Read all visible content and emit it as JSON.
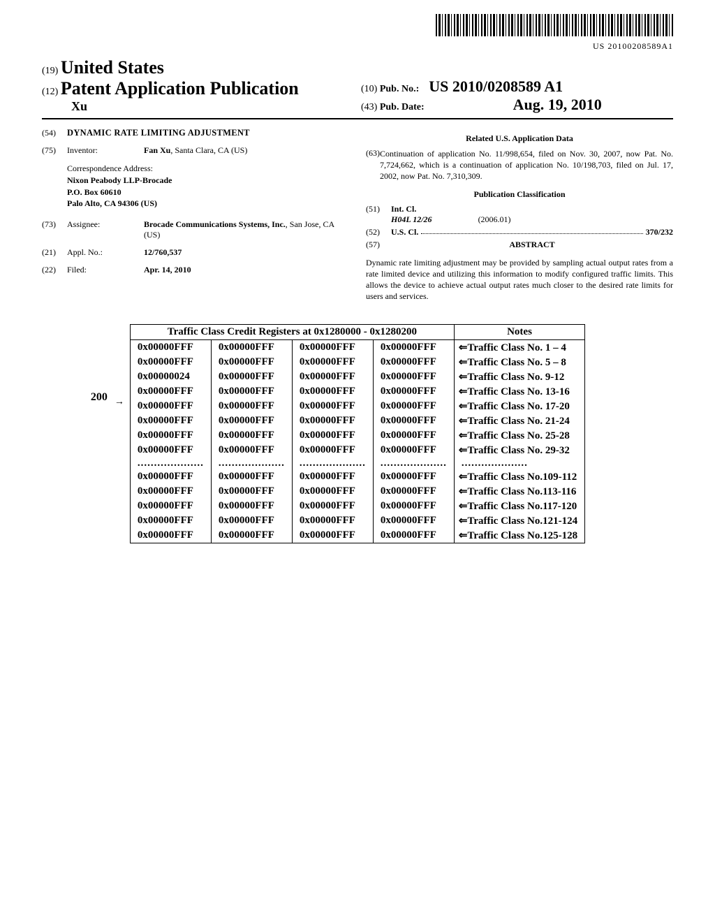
{
  "barcode_text": "US 20100208589A1",
  "header": {
    "code19": "(19)",
    "country": "United States",
    "code12": "(12)",
    "pub_title": "Patent Application Publication",
    "author": "Xu",
    "code10": "(10)",
    "pubno_label": "Pub. No.:",
    "pubno": "US 2010/0208589 A1",
    "code43": "(43)",
    "pubdate_label": "Pub. Date:",
    "pubdate": "Aug. 19, 2010"
  },
  "left": {
    "f54": {
      "code": "(54)",
      "title": "DYNAMIC RATE LIMITING ADJUSTMENT"
    },
    "f75": {
      "code": "(75)",
      "label": "Inventor:",
      "name": "Fan Xu",
      "loc": ", Santa Clara, CA (US)"
    },
    "addr_label": "Correspondence Address:",
    "addr1": "Nixon Peabody LLP-Brocade",
    "addr2": "P.O. Box 60610",
    "addr3": "Palo Alto, CA 94306 (US)",
    "f73": {
      "code": "(73)",
      "label": "Assignee:",
      "name": "Brocade Communications Systems, Inc.",
      "loc": ", San Jose, CA (US)"
    },
    "f21": {
      "code": "(21)",
      "label": "Appl. No.:",
      "value": "12/760,537"
    },
    "f22": {
      "code": "(22)",
      "label": "Filed:",
      "value": "Apr. 14, 2010"
    }
  },
  "right": {
    "related_head": "Related U.S. Application Data",
    "f63": {
      "code": "(63)",
      "text": "Continuation of application No. 11/998,654, filed on Nov. 30, 2007, now Pat. No. 7,724,662, which is a continuation of application No. 10/198,703, filed on Jul. 17, 2002, now Pat. No. 7,310,309."
    },
    "class_head": "Publication Classification",
    "f51": {
      "code": "(51)",
      "label": "Int. Cl.",
      "class": "H04L 12/26",
      "year": "(2006.01)"
    },
    "f52": {
      "code": "(52)",
      "label": "U.S. Cl.",
      "value": "370/232"
    },
    "f57": {
      "code": "(57)",
      "label": "ABSTRACT"
    },
    "abstract": "Dynamic rate limiting adjustment may be provided by sampling actual output rates from a rate limited device and utilizing this information to modify configured traffic limits. This allows the device to achieve actual output rates much closer to the desired rate limits for users and services."
  },
  "figure": {
    "ref": "200",
    "header_main": "Traffic Class Credit Registers at  0x1280000 - 0x1280200",
    "header_notes": "Notes",
    "cols": [
      "c1",
      "c2",
      "c3",
      "c4",
      "note"
    ],
    "rows": [
      {
        "c1": "0x00000FFF",
        "c2": "0x00000FFF",
        "c3": "0x00000FFF",
        "c4": "0x00000FFF",
        "note": "⇐Traffic Class No. 1 – 4"
      },
      {
        "c1": "0x00000FFF",
        "c2": "0x00000FFF",
        "c3": "0x00000FFF",
        "c4": "0x00000FFF",
        "note": "⇐Traffic Class No. 5 – 8"
      },
      {
        "c1": "0x00000024",
        "c2": "0x00000FFF",
        "c3": "0x00000FFF",
        "c4": "0x00000FFF",
        "note": "⇐Traffic Class No. 9-12"
      },
      {
        "c1": "0x00000FFF",
        "c2": "0x00000FFF",
        "c3": "0x00000FFF",
        "c4": "0x00000FFF",
        "note": "⇐Traffic Class No. 13-16"
      },
      {
        "c1": "0x00000FFF",
        "c2": "0x00000FFF",
        "c3": "0x00000FFF",
        "c4": "0x00000FFF",
        "note": "⇐Traffic Class No. 17-20"
      },
      {
        "c1": "0x00000FFF",
        "c2": "0x00000FFF",
        "c3": "0x00000FFF",
        "c4": "0x00000FFF",
        "note": "⇐Traffic Class No. 21-24"
      },
      {
        "c1": "0x00000FFF",
        "c2": "0x00000FFF",
        "c3": "0x00000FFF",
        "c4": "0x00000FFF",
        "note": "⇐Traffic Class No. 25-28"
      },
      {
        "c1": "0x00000FFF",
        "c2": "0x00000FFF",
        "c3": "0x00000FFF",
        "c4": "0x00000FFF",
        "note": "⇐Traffic Class No. 29-32"
      }
    ],
    "ellipsis": "....................",
    "rows2": [
      {
        "c1": "0x00000FFF",
        "c2": "0x00000FFF",
        "c3": "0x00000FFF",
        "c4": "0x00000FFF",
        "note": "⇐Traffic Class No.109-112"
      },
      {
        "c1": "0x00000FFF",
        "c2": "0x00000FFF",
        "c3": "0x00000FFF",
        "c4": "0x00000FFF",
        "note": "⇐Traffic Class No.113-116"
      },
      {
        "c1": "0x00000FFF",
        "c2": "0x00000FFF",
        "c3": "0x00000FFF",
        "c4": "0x00000FFF",
        "note": "⇐Traffic Class No.117-120"
      },
      {
        "c1": "0x00000FFF",
        "c2": "0x00000FFF",
        "c3": "0x00000FFF",
        "c4": "0x00000FFF",
        "note": "⇐Traffic Class No.121-124"
      },
      {
        "c1": "0x00000FFF",
        "c2": "0x00000FFF",
        "c3": "0x00000FFF",
        "c4": "0x00000FFF",
        "note": "⇐Traffic Class No.125-128"
      }
    ]
  }
}
